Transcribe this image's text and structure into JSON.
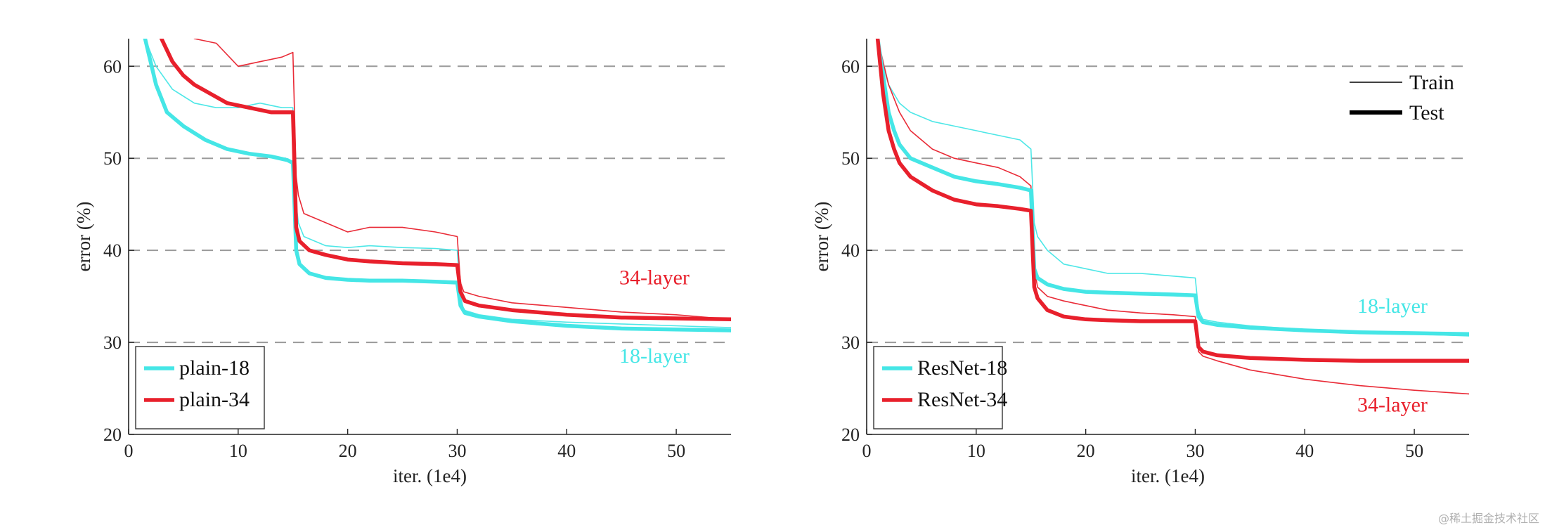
{
  "watermark": "@稀土掘金技术社区",
  "colors": {
    "cyan": "#45e6e6",
    "red": "#e8202c",
    "grid": "#9a9a9a"
  },
  "chart_data": [
    {
      "type": "line",
      "xlabel": "iter. (1e4)",
      "ylabel": "error (%)",
      "xlim": [
        0,
        55
      ],
      "ylim": [
        20,
        63
      ],
      "xticks": [
        0,
        10,
        20,
        30,
        40,
        50
      ],
      "yticks": [
        20,
        30,
        40,
        50,
        60
      ],
      "grid": "horizontal dashed at 30, 40, 50, 60",
      "legend": {
        "position": "bottom-left",
        "entries": [
          "plain-18",
          "plain-34"
        ]
      },
      "annotations": [
        {
          "text": "34-layer",
          "color": "#e8202c",
          "x": 48,
          "y": 36.3
        },
        {
          "text": "18-layer",
          "color": "#45e6e6",
          "x": 48,
          "y": 27.8
        }
      ],
      "series": [
        {
          "name": "plain-18",
          "style": "train",
          "color": "#45e6e6",
          "x": [
            1.5,
            2.5,
            4,
            6,
            8,
            10,
            12,
            14,
            15,
            15.3,
            15.5,
            16,
            18,
            20,
            22,
            25,
            28,
            30,
            30.3,
            30.6,
            32,
            35,
            40,
            45,
            50,
            55
          ],
          "y": [
            63,
            60,
            57.5,
            56,
            55.5,
            55.5,
            56,
            55.5,
            55.5,
            45,
            43,
            41.5,
            40.5,
            40.3,
            40.5,
            40.3,
            40.2,
            40,
            35,
            33.5,
            33,
            32.5,
            32.2,
            32,
            31.8,
            31.6
          ]
        },
        {
          "name": "plain-34",
          "style": "train",
          "color": "#e8202c",
          "x": [
            6,
            8,
            10,
            12,
            14,
            15,
            15.3,
            15.5,
            16,
            18,
            20,
            22,
            25,
            28,
            30,
            30.3,
            30.6,
            32,
            35,
            40,
            45,
            50,
            55
          ],
          "y": [
            63,
            62.5,
            60,
            60.5,
            61,
            61.5,
            48,
            46,
            44,
            43,
            42,
            42.5,
            42.5,
            42,
            41.5,
            36.5,
            35.5,
            35,
            34.3,
            33.8,
            33.3,
            33,
            32.5
          ]
        },
        {
          "name": "plain-18",
          "style": "test",
          "color": "#45e6e6",
          "x": [
            1.5,
            2.5,
            3.5,
            5,
            7,
            9,
            11,
            13,
            14.5,
            15,
            15.3,
            15.6,
            16.5,
            18,
            20,
            22,
            25,
            28,
            30,
            30.3,
            30.7,
            32,
            35,
            40,
            45,
            50,
            55
          ],
          "y": [
            63,
            58,
            55,
            53.5,
            52,
            51,
            50.5,
            50.2,
            49.8,
            49.5,
            40,
            38.5,
            37.5,
            37,
            36.8,
            36.7,
            36.7,
            36.6,
            36.5,
            34,
            33.2,
            32.8,
            32.3,
            31.8,
            31.5,
            31.4,
            31.3
          ]
        },
        {
          "name": "plain-34",
          "style": "test",
          "color": "#e8202c",
          "x": [
            3,
            4,
            5,
            6,
            7.5,
            9,
            11,
            13,
            14.5,
            15,
            15.3,
            15.6,
            16.5,
            18,
            20,
            22,
            25,
            28,
            30,
            30.3,
            30.7,
            32,
            35,
            40,
            45,
            50,
            55
          ],
          "y": [
            63,
            60.5,
            59,
            58,
            57,
            56,
            55.5,
            55,
            55,
            55,
            42.5,
            41,
            40,
            39.5,
            39,
            38.8,
            38.6,
            38.5,
            38.4,
            35.5,
            34.5,
            34,
            33.5,
            33,
            32.7,
            32.6,
            32.5
          ]
        }
      ]
    },
    {
      "type": "line",
      "xlabel": "iter. (1e4)",
      "ylabel": "error (%)",
      "xlim": [
        0,
        55
      ],
      "ylim": [
        20,
        63
      ],
      "xticks": [
        0,
        10,
        20,
        30,
        40,
        50
      ],
      "yticks": [
        20,
        30,
        40,
        50,
        60
      ],
      "grid": "horizontal dashed at 30, 40, 50, 60",
      "legend": {
        "position": "bottom-left",
        "entries": [
          "ResNet-18",
          "ResNet-34"
        ]
      },
      "style_key": {
        "position": "top-right",
        "entries": [
          "Train",
          "Test"
        ]
      },
      "annotations": [
        {
          "text": "18-layer",
          "color": "#45e6e6",
          "x": 48,
          "y": 33.2
        },
        {
          "text": "34-layer",
          "color": "#e8202c",
          "x": 48,
          "y": 22.5
        }
      ],
      "series": [
        {
          "name": "ResNet-18",
          "style": "train",
          "color": "#45e6e6",
          "x": [
            1,
            1.5,
            2,
            3,
            4,
            6,
            8,
            10,
            12,
            14,
            15,
            15.3,
            15.6,
            16.5,
            18,
            20,
            22,
            25,
            28,
            30,
            30.3,
            30.7,
            32,
            35,
            40,
            45,
            50,
            55
          ],
          "y": [
            63,
            60,
            58,
            56,
            55,
            54,
            53.5,
            53,
            52.5,
            52,
            51,
            43,
            41.5,
            40,
            38.5,
            38,
            37.5,
            37.5,
            37.2,
            37,
            33.5,
            32.5,
            32.2,
            31.8,
            31.4,
            31.1,
            30.9,
            30.7
          ]
        },
        {
          "name": "ResNet-34",
          "style": "train",
          "color": "#e8202c",
          "x": [
            1,
            2,
            3,
            4,
            6,
            8,
            10,
            12,
            14,
            15,
            15.3,
            15.6,
            16.5,
            18,
            20,
            22,
            25,
            28,
            30,
            30.3,
            30.7,
            32,
            35,
            40,
            45,
            50,
            55
          ],
          "y": [
            63,
            58,
            55,
            53,
            51,
            50,
            49.5,
            49,
            48,
            47,
            38,
            36,
            35,
            34.5,
            34,
            33.5,
            33.2,
            33,
            32.8,
            29,
            28.5,
            28,
            27,
            26,
            25.3,
            24.8,
            24.4
          ]
        },
        {
          "name": "ResNet-18",
          "style": "test",
          "color": "#45e6e6",
          "x": [
            1,
            1.5,
            2,
            2.5,
            3,
            4,
            6,
            8,
            10,
            12,
            14,
            15,
            15.3,
            15.6,
            16.5,
            18,
            20,
            22,
            25,
            28,
            30,
            30.3,
            30.7,
            32,
            35,
            40,
            45,
            50,
            55
          ],
          "y": [
            63,
            59,
            55,
            53,
            51.5,
            50,
            49,
            48,
            47.5,
            47.2,
            46.8,
            46.5,
            38,
            37,
            36.3,
            35.8,
            35.5,
            35.4,
            35.3,
            35.2,
            35.1,
            32.8,
            32.2,
            31.9,
            31.6,
            31.3,
            31.1,
            31,
            30.9
          ]
        },
        {
          "name": "ResNet-34",
          "style": "test",
          "color": "#e8202c",
          "x": [
            1,
            1.5,
            2,
            2.5,
            3,
            4,
            6,
            8,
            10,
            12,
            14,
            15,
            15.3,
            15.6,
            16.5,
            18,
            20,
            22,
            25,
            28,
            30,
            30.3,
            30.7,
            32,
            35,
            40,
            45,
            50,
            55
          ],
          "y": [
            63,
            57,
            53,
            51,
            49.5,
            48,
            46.5,
            45.5,
            45,
            44.8,
            44.5,
            44.3,
            36,
            34.8,
            33.5,
            32.8,
            32.5,
            32.4,
            32.3,
            32.3,
            32.3,
            29.5,
            29,
            28.6,
            28.3,
            28.1,
            28,
            28,
            28
          ]
        }
      ]
    }
  ]
}
